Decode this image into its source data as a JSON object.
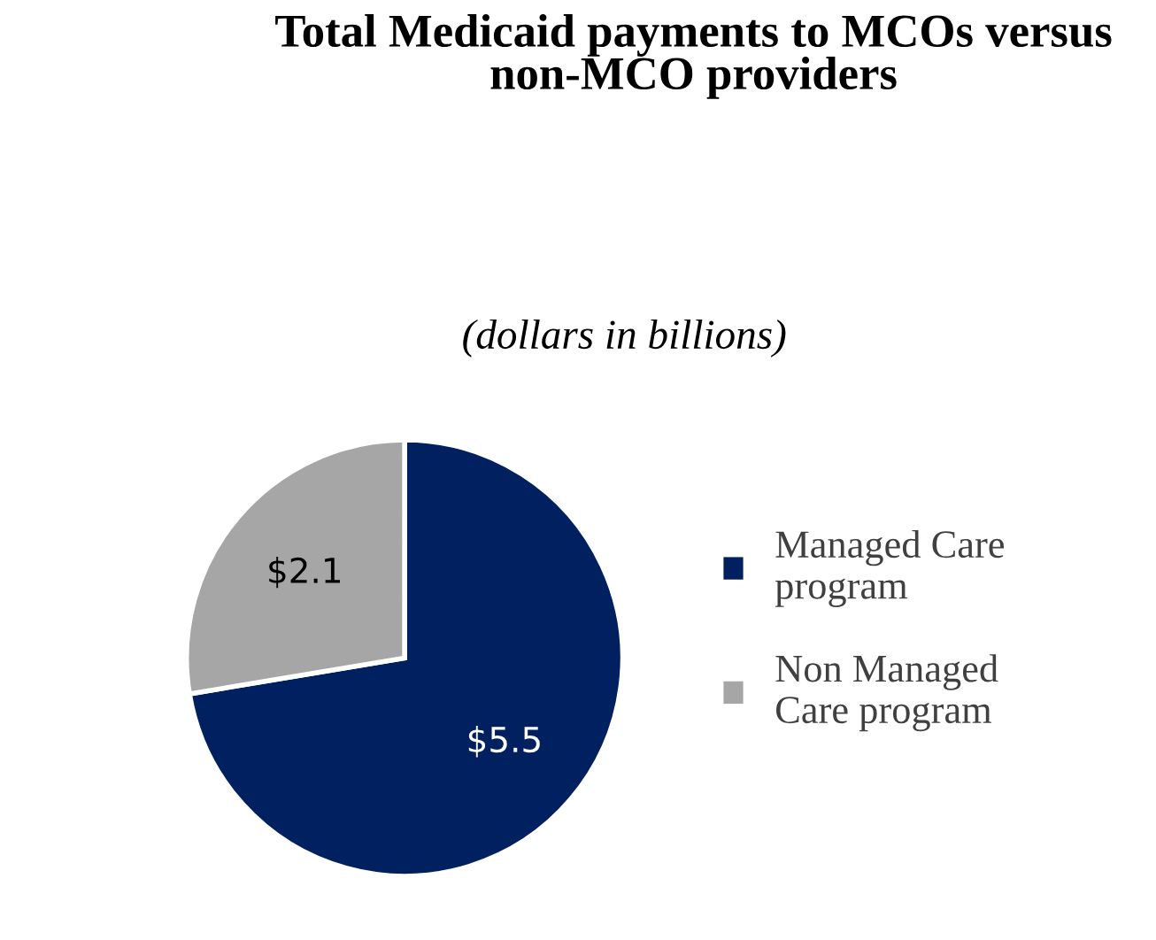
{
  "chart_data": {
    "type": "pie",
    "title": "Total Medicaid payments to MCOs versus non-MCO providers",
    "subtitle": "(dollars in billions)",
    "categories": [
      "Managed Care program",
      "Non Managed Care program"
    ],
    "values": [
      5.5,
      2.1
    ],
    "colors": [
      "#002060",
      "#a6a6a6"
    ],
    "value_labels": [
      "$5.5",
      "$2.1"
    ],
    "legend": "right"
  }
}
